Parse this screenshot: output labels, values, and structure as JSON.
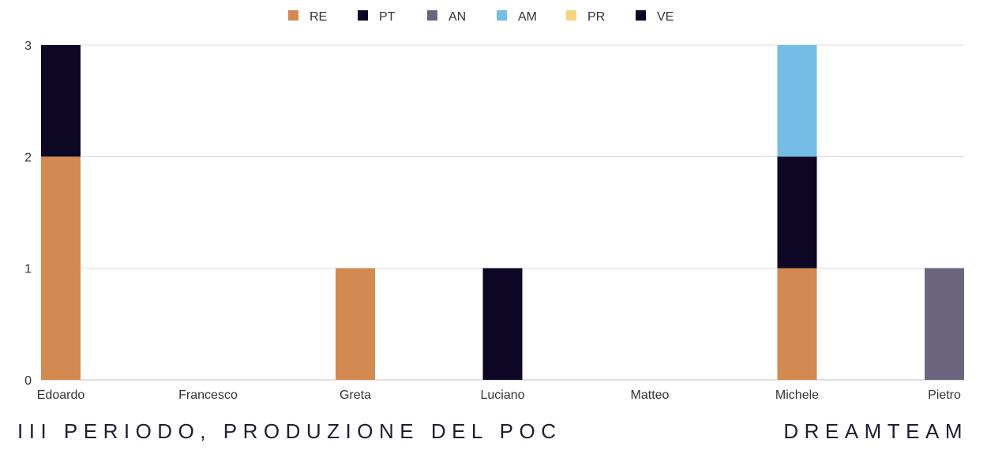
{
  "chart_data": {
    "type": "bar",
    "stacked": true,
    "categories": [
      "Edoardo",
      "Francesco",
      "Greta",
      "Luciano",
      "Matteo",
      "Michele",
      "Pietro"
    ],
    "series": [
      {
        "name": "RE",
        "color": "#d38950",
        "values": [
          2,
          0,
          1,
          0,
          0,
          1,
          0
        ]
      },
      {
        "name": "PT",
        "color": "#0d0624",
        "values": [
          1,
          0,
          0,
          0,
          0,
          1,
          0
        ]
      },
      {
        "name": "AN",
        "color": "#6b6580",
        "values": [
          0,
          0,
          0,
          0,
          0,
          0,
          1
        ]
      },
      {
        "name": "AM",
        "color": "#74bde7",
        "values": [
          0,
          0,
          0,
          0,
          0,
          1,
          0
        ]
      },
      {
        "name": "PR",
        "color": "#f6d581",
        "values": [
          0,
          0,
          0,
          0,
          0,
          0,
          0
        ]
      },
      {
        "name": "VE",
        "color": "#0d0624",
        "values": [
          0,
          0,
          0,
          1,
          0,
          0,
          0
        ]
      }
    ],
    "ylim": [
      0,
      3
    ],
    "yticks": [
      0,
      1,
      2,
      3
    ],
    "grid": true,
    "legend": "top-center"
  },
  "footer": {
    "left": "III PERIODO, PRODUZIONE DEL POC",
    "right": "DREAMTEAM"
  }
}
